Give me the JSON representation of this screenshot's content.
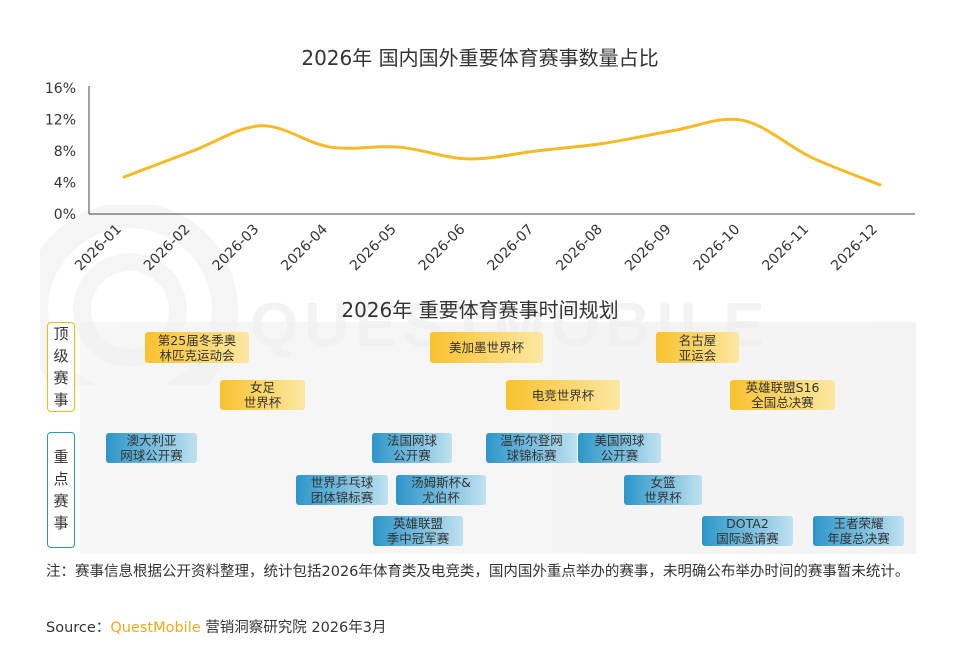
{
  "chart_data": [
    {
      "type": "line",
      "title": "2026年 国内国外重要体育赛事数量占比",
      "categories": [
        "2026-01",
        "2026-02",
        "2026-03",
        "2026-04",
        "2026-05",
        "2026-06",
        "2026-07",
        "2026-08",
        "2026-09",
        "2026-10",
        "2026-11",
        "2026-12"
      ],
      "series": [
        {
          "values": [
            4.7,
            8.0,
            11.2,
            8.5,
            8.5,
            7.0,
            8.0,
            9.0,
            10.6,
            11.9,
            7.2,
            3.7
          ]
        }
      ],
      "yticks": [
        "0%",
        "4%",
        "8%",
        "12%",
        "16%"
      ],
      "ylim": [
        0,
        16
      ],
      "y_unit": "%",
      "grid": false,
      "color": "#f7b924"
    },
    {
      "type": "table",
      "title": "2026年 重要体育赛事时间规划",
      "rows": [
        {
          "category": "顶级赛事",
          "events": [
            {
              "name": "第25届冬季奥\n林匹克运动会",
              "months": [
                2,
                2
              ]
            },
            {
              "name": "女足\n世界杯",
              "months": [
                3,
                3
              ]
            },
            {
              "name": "美加墨世界杯",
              "months": [
                6,
                7
              ]
            },
            {
              "name": "电竞世界杯",
              "months": [
                7,
                8
              ]
            },
            {
              "name": "名古屋\n亚运会",
              "months": [
                9,
                10
              ]
            },
            {
              "name": "英雄联盟S16\n全国总决赛",
              "months": [
                10,
                11
              ]
            }
          ]
        },
        {
          "category": "重点赛事",
          "events": [
            {
              "name": "澳大利亚\n网球公开赛",
              "months": [
                1,
                2
              ]
            },
            {
              "name": "法国网球\n公开赛",
              "months": [
                5,
                5
              ]
            },
            {
              "name": "世界乒乓球\n团体锦标赛",
              "months": [
                4,
                5
              ]
            },
            {
              "name": "汤姆斯杯&\n尤伯杯",
              "months": [
                5,
                6
              ]
            },
            {
              "name": "英雄联盟\n季中冠军赛",
              "months": [
                5,
                6
              ]
            },
            {
              "name": "温布尔登网\n球锦标赛",
              "months": [
                6,
                7
              ]
            },
            {
              "name": "美国网球\n公开赛",
              "months": [
                8,
                9
              ]
            },
            {
              "name": "女篮\n世界杯",
              "months": [
                9,
                9
              ]
            },
            {
              "name": "DOTA2\n国际邀请赛",
              "months": [
                10,
                10
              ]
            },
            {
              "name": "王者荣耀\n年度总决赛",
              "months": [
                11,
                12
              ]
            }
          ]
        }
      ]
    }
  ],
  "note": "注：赛事信息根据公开资料整理，统计包括2026年体育类及电竞类，国内国外重点举办的赛事，未明确公布举办时间的赛事暂未统计。",
  "source": {
    "label": "Source：",
    "brand": "QuestMobile",
    "suffix": "营销洞察研究院 2026年3月"
  },
  "watermark": "QUESTMOBILE",
  "colors": {
    "top_event": "#f9c22e",
    "key_event": "#2c96c9",
    "line": "#f7b924"
  }
}
